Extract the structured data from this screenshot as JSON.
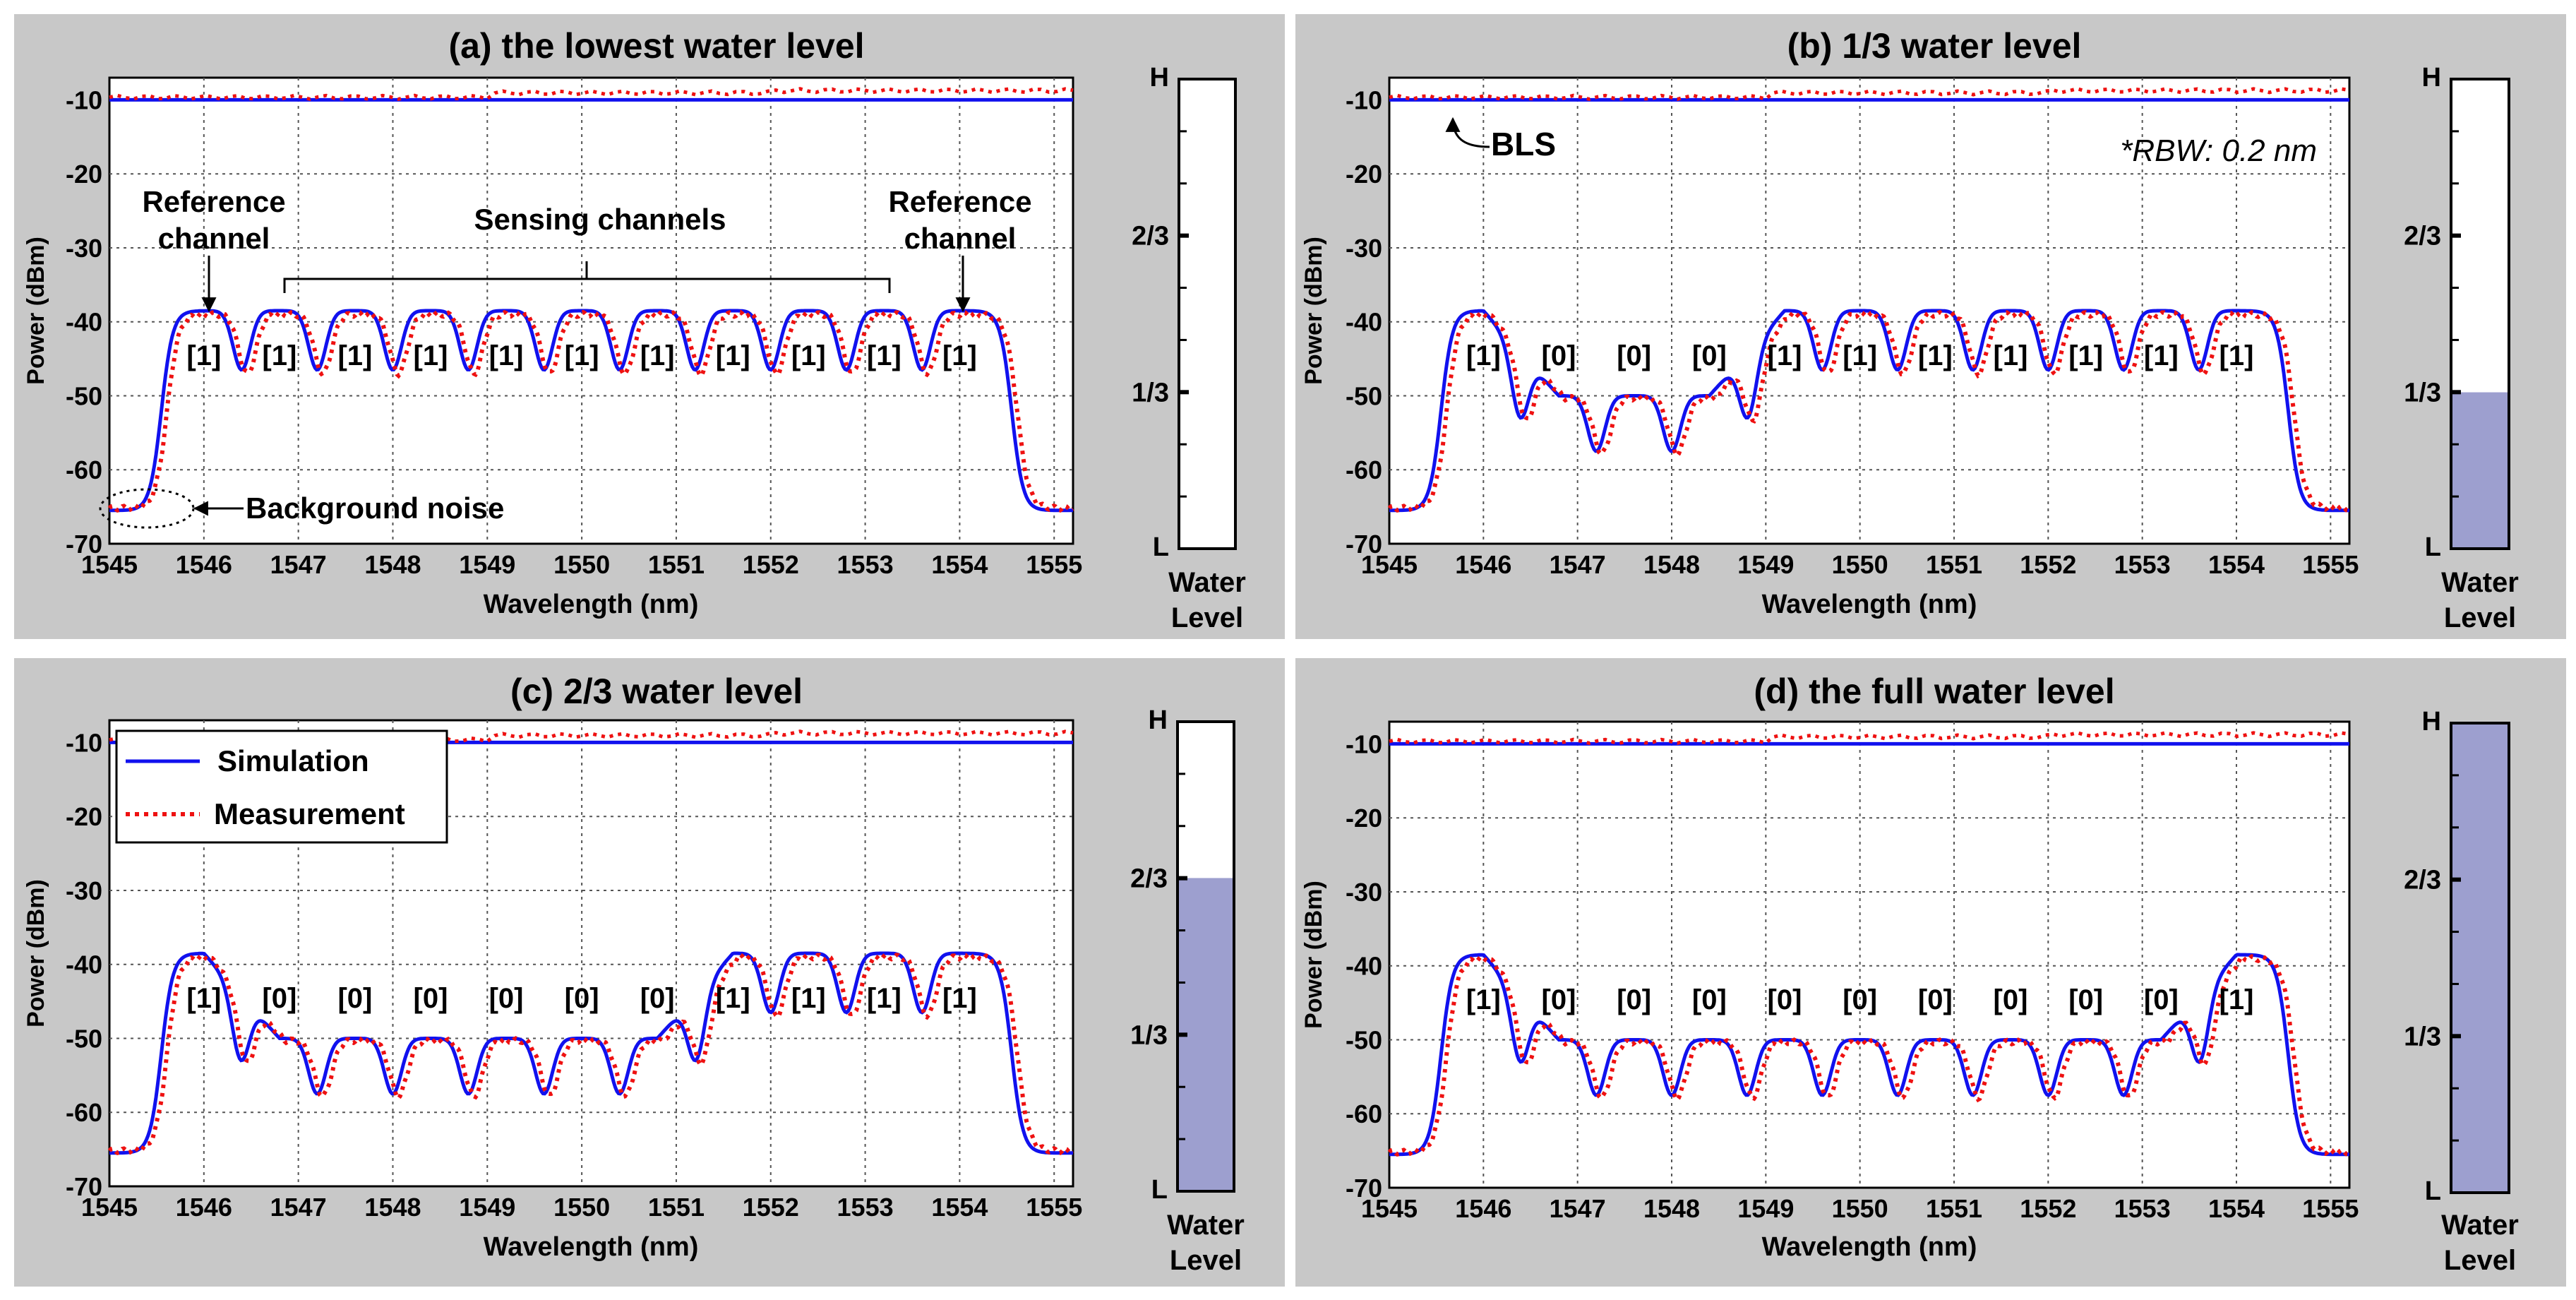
{
  "legend": {
    "simulation": "Simulation",
    "measurement": "Measurement"
  },
  "colors": {
    "panel_bg": "#c8c8c8",
    "simulation": "#1111ee",
    "measurement": "#ee1111",
    "water": "#9d9fcf",
    "grid": "#555555"
  },
  "axis": {
    "xlabel": "Wavelength (nm)",
    "ylabel": "Power (dBm)",
    "xlim": [
      1545,
      1555.2
    ],
    "ylim": [
      -70,
      -7
    ],
    "xticks": [
      1545,
      1546,
      1547,
      1548,
      1549,
      1550,
      1551,
      1552,
      1553,
      1554,
      1555
    ],
    "yticks": [
      -10,
      -20,
      -30,
      -40,
      -50,
      -60,
      -70
    ]
  },
  "gauge": {
    "label_line1": "Water",
    "label_line2": "Level",
    "ticks": [
      "H",
      "2/3",
      "1/3",
      "L"
    ]
  },
  "annotations": {
    "ref_left": [
      "Reference",
      "channel"
    ],
    "ref_right": [
      "Reference",
      "channel"
    ],
    "sensing": "Sensing channels",
    "noise": "Background noise",
    "bls": "BLS",
    "rbw": "*RBW: 0.2 nm"
  },
  "chart_data": [
    {
      "id": "a",
      "type": "line",
      "title": "(a) the lowest water level",
      "water_level": 0,
      "series": [
        {
          "name": "Simulation",
          "style": "solid",
          "channels": [
            1,
            1,
            1,
            1,
            1,
            1,
            1,
            1,
            1,
            1,
            1
          ]
        },
        {
          "name": "Measurement",
          "style": "dotted",
          "channels": [
            1,
            1,
            1,
            1,
            1,
            1,
            1,
            1,
            1,
            1,
            1
          ]
        }
      ],
      "bls_level_dbm": -10,
      "noise_floor_dbm": -65.5,
      "peak_high_dbm": -38.5,
      "peak_low_dbm": -50,
      "channel_centers_nm": [
        1546.0,
        1546.8,
        1547.6,
        1548.4,
        1549.2,
        1550.0,
        1550.8,
        1551.6,
        1552.4,
        1553.2,
        1554.0
      ],
      "labels": [
        "[1]",
        "[1]",
        "[1]",
        "[1]",
        "[1]",
        "[1]",
        "[1]",
        "[1]",
        "[1]",
        "[1]",
        "[1]"
      ]
    },
    {
      "id": "b",
      "type": "line",
      "title": "(b) 1/3 water level",
      "water_level": 0.333,
      "series": [
        {
          "name": "Simulation",
          "style": "solid",
          "channels": [
            1,
            0,
            0,
            0,
            1,
            1,
            1,
            1,
            1,
            1,
            1
          ]
        },
        {
          "name": "Measurement",
          "style": "dotted",
          "channels": [
            1,
            0,
            0,
            0,
            1,
            1,
            1,
            1,
            1,
            1,
            1
          ]
        }
      ],
      "bls_level_dbm": -10,
      "noise_floor_dbm": -65.5,
      "peak_high_dbm": -38.5,
      "peak_low_dbm": -50,
      "channel_centers_nm": [
        1546.0,
        1546.8,
        1547.6,
        1548.4,
        1549.2,
        1550.0,
        1550.8,
        1551.6,
        1552.4,
        1553.2,
        1554.0
      ],
      "labels": [
        "[1]",
        "[0]",
        "[0]",
        "[0]",
        "[1]",
        "[1]",
        "[1]",
        "[1]",
        "[1]",
        "[1]",
        "[1]"
      ]
    },
    {
      "id": "c",
      "type": "line",
      "title": "(c) 2/3 water level",
      "water_level": 0.667,
      "series": [
        {
          "name": "Simulation",
          "style": "solid",
          "channels": [
            1,
            0,
            0,
            0,
            0,
            0,
            0,
            1,
            1,
            1,
            1
          ]
        },
        {
          "name": "Measurement",
          "style": "dotted",
          "channels": [
            1,
            0,
            0,
            0,
            0,
            0,
            0,
            1,
            1,
            1,
            1
          ]
        }
      ],
      "bls_level_dbm": -10,
      "noise_floor_dbm": -65.5,
      "peak_high_dbm": -38.5,
      "peak_low_dbm": -50,
      "channel_centers_nm": [
        1546.0,
        1546.8,
        1547.6,
        1548.4,
        1549.2,
        1550.0,
        1550.8,
        1551.6,
        1552.4,
        1553.2,
        1554.0
      ],
      "labels": [
        "[1]",
        "[0]",
        "[0]",
        "[0]",
        "[0]",
        "[0]",
        "[0]",
        "[1]",
        "[1]",
        "[1]",
        "[1]"
      ]
    },
    {
      "id": "d",
      "type": "line",
      "title": "(d) the full water level",
      "water_level": 1,
      "series": [
        {
          "name": "Simulation",
          "style": "solid",
          "channels": [
            1,
            0,
            0,
            0,
            0,
            0,
            0,
            0,
            0,
            0,
            1
          ]
        },
        {
          "name": "Measurement",
          "style": "dotted",
          "channels": [
            1,
            0,
            0,
            0,
            0,
            0,
            0,
            0,
            0,
            0,
            1
          ]
        }
      ],
      "bls_level_dbm": -10,
      "noise_floor_dbm": -65.5,
      "peak_high_dbm": -38.5,
      "peak_low_dbm": -50,
      "channel_centers_nm": [
        1546.0,
        1546.8,
        1547.6,
        1548.4,
        1549.2,
        1550.0,
        1550.8,
        1551.6,
        1552.4,
        1553.2,
        1554.0
      ],
      "labels": [
        "[1]",
        "[0]",
        "[0]",
        "[0]",
        "[0]",
        "[0]",
        "[0]",
        "[0]",
        "[0]",
        "[0]",
        "[1]"
      ]
    }
  ]
}
